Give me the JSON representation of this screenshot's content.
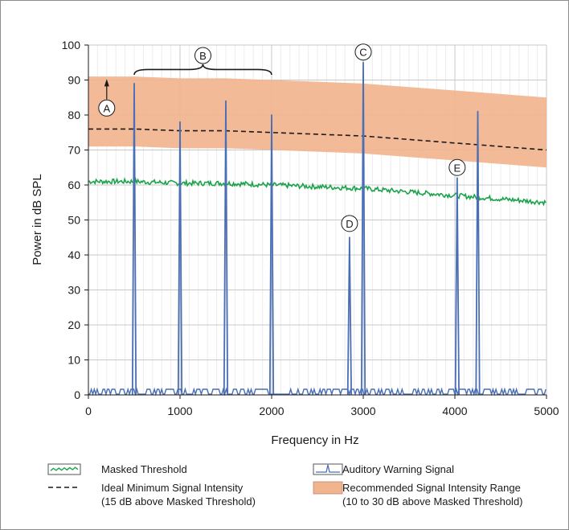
{
  "chart_data": {
    "type": "line",
    "title": "",
    "xlabel": "Frequency in Hz",
    "ylabel": "Power in dB SPL",
    "xlim": [
      0,
      5000
    ],
    "ylim": [
      0,
      100
    ],
    "x_ticks": [
      0,
      1000,
      2000,
      3000,
      4000,
      5000
    ],
    "y_ticks": [
      0,
      10,
      20,
      30,
      40,
      50,
      60,
      70,
      80,
      90,
      100
    ],
    "grid": true,
    "legend_position": "bottom",
    "colors": {
      "masked_threshold": "#1aa34a",
      "auditory_signal": "#4a6fb5",
      "ideal_minimum": "#1a1a1a",
      "recommended_range": "#f2b48f"
    },
    "series": [
      {
        "name": "Masked Threshold",
        "x": [
          0,
          500,
          1000,
          1500,
          2000,
          2500,
          3000,
          3500,
          4000,
          4500,
          5000
        ],
        "values": [
          61,
          61,
          60.5,
          60.5,
          60,
          59.5,
          59,
          58,
          57,
          56,
          55
        ]
      },
      {
        "name": "Ideal Minimum Signal Intensity",
        "x": [
          0,
          500,
          1000,
          1500,
          2000,
          2500,
          3000,
          3500,
          4000,
          4500,
          5000
        ],
        "values": [
          76,
          76,
          75.5,
          75.5,
          75,
          74.5,
          74,
          73,
          72,
          71,
          70
        ]
      },
      {
        "name": "Recommended Signal Intensity Range",
        "x": [
          0,
          500,
          1000,
          1500,
          2000,
          2500,
          3000,
          3500,
          4000,
          4500,
          5000
        ],
        "lower": [
          71,
          71,
          70.5,
          70.5,
          70,
          69.5,
          69,
          68,
          67,
          66,
          65
        ],
        "upper": [
          91,
          91,
          90.5,
          90.5,
          90,
          89.5,
          89,
          88,
          87,
          86,
          85
        ]
      },
      {
        "name": "Auditory Warning Signal",
        "peaks": [
          {
            "x": 500,
            "value": 89
          },
          {
            "x": 1000,
            "value": 78
          },
          {
            "x": 1500,
            "value": 84
          },
          {
            "x": 2000,
            "value": 80
          },
          {
            "x": 2850,
            "value": 45
          },
          {
            "x": 3000,
            "value": 95
          },
          {
            "x": 4025,
            "value": 62
          },
          {
            "x": 4250,
            "value": 81
          }
        ],
        "noise_floor": 1
      }
    ],
    "annotations": [
      {
        "label": "A",
        "x": 200,
        "value": 82
      },
      {
        "label": "B",
        "x": 1250,
        "value": 97
      },
      {
        "label": "C",
        "x": 3000,
        "value": 98
      },
      {
        "label": "D",
        "x": 2850,
        "value": 49
      },
      {
        "label": "E",
        "x": 4025,
        "value": 65
      }
    ],
    "legend": [
      {
        "key": "masked_threshold",
        "label": "Masked Threshold",
        "sublabel": ""
      },
      {
        "key": "ideal_minimum",
        "label": "Ideal Minimum Signal Intensity",
        "sublabel": "(15 dB above Masked Threshold)"
      },
      {
        "key": "auditory_signal",
        "label": "Auditory Warning Signal",
        "sublabel": ""
      },
      {
        "key": "recommended_range",
        "label": "Recommended Signal Intensity Range",
        "sublabel": "(10 to 30 dB above Masked Threshold)"
      }
    ]
  }
}
